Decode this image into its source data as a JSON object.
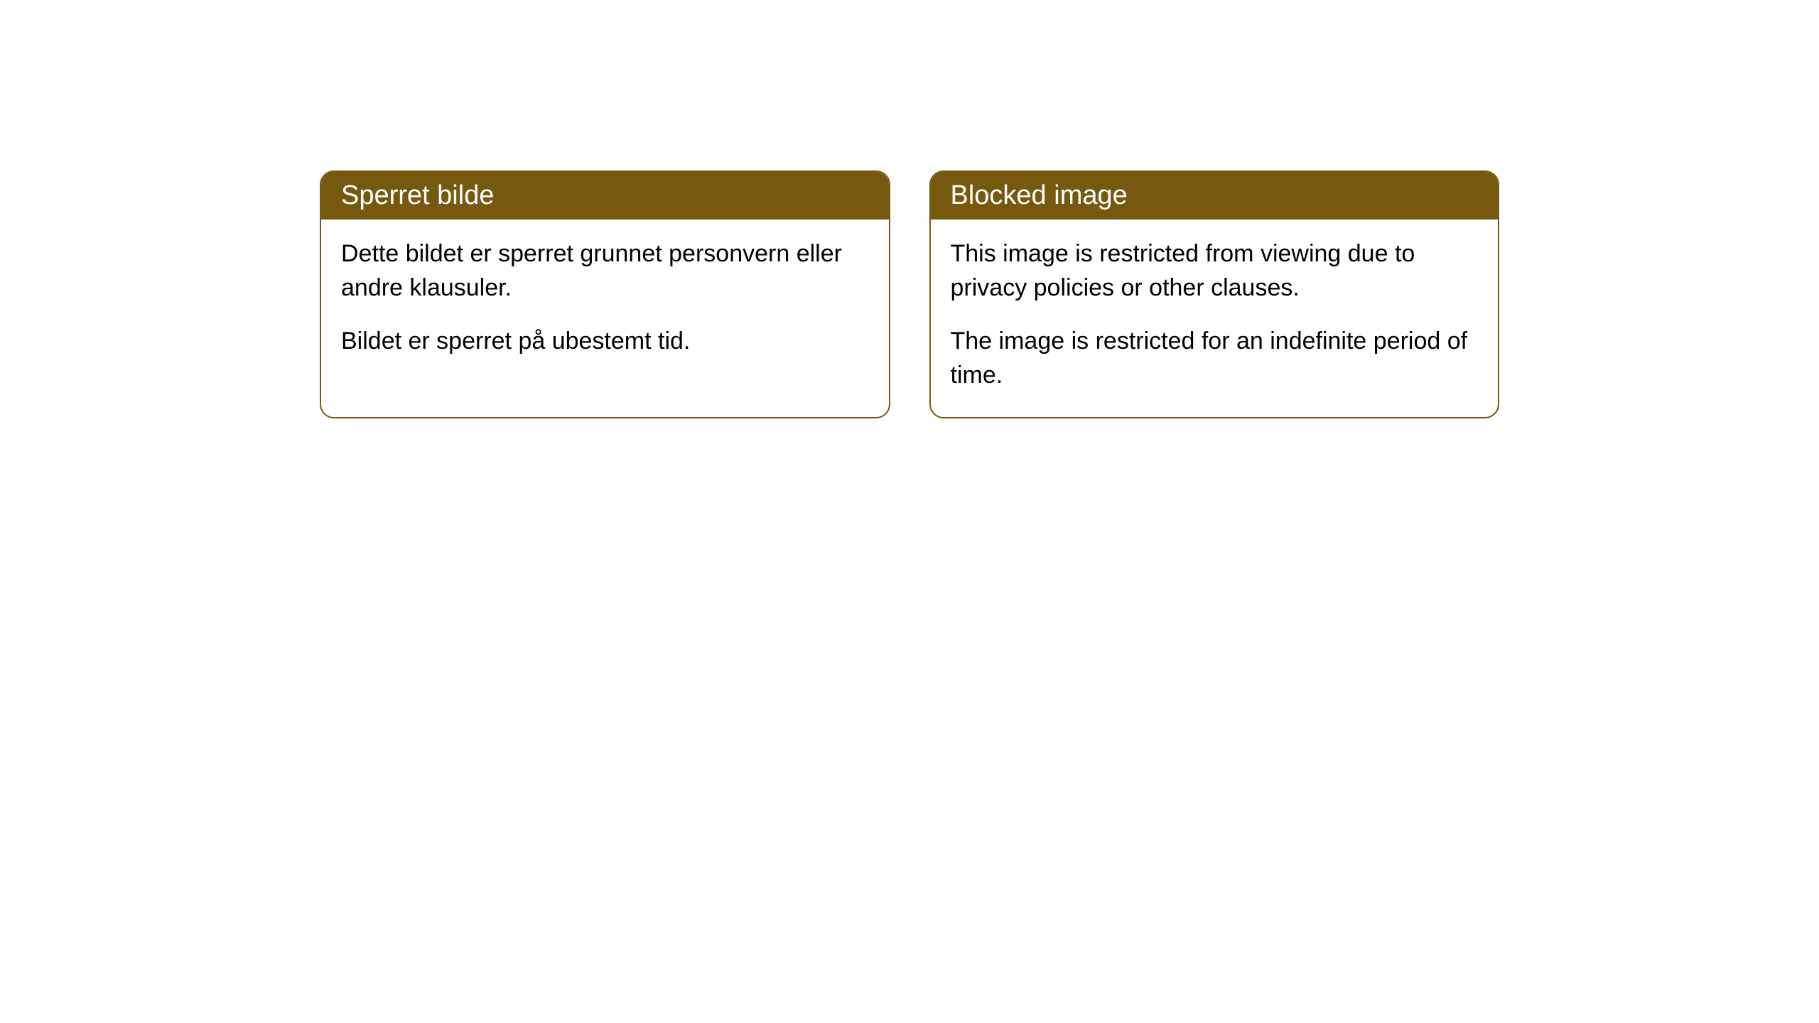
{
  "cards": [
    {
      "title": "Sperret bilde",
      "paragraph1": "Dette bildet er sperret grunnet personvern eller andre klausuler.",
      "paragraph2": "Bildet er sperret på ubestemt tid."
    },
    {
      "title": "Blocked image",
      "paragraph1": "This image is restricted from viewing due to privacy policies or other clauses.",
      "paragraph2": "The image is restricted for an indefinite period of time."
    }
  ],
  "styles": {
    "header_background_color": "#76580f",
    "header_text_color": "#ffffff",
    "border_color": "#76580f",
    "border_radius": "20px",
    "body_background_color": "#ffffff",
    "body_text_color": "#000000",
    "header_fontsize": 38,
    "body_fontsize": 34
  }
}
